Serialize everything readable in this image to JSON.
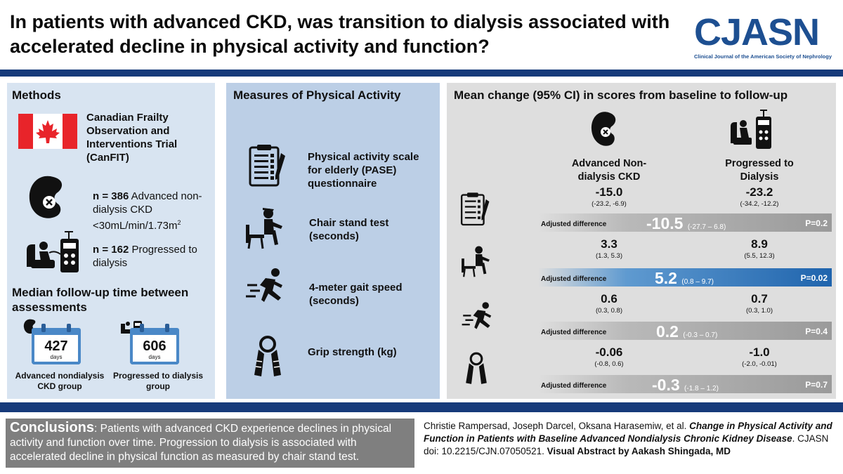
{
  "header": {
    "title": "In patients with advanced CKD, was transition to dialysis associated with accelerated decline in physical activity and function?",
    "logo": "CJASN",
    "logo_subtitle": "Clinical Journal of the American Society of Nephrology"
  },
  "methods": {
    "heading": "Methods",
    "trial": "Canadian Frailty Observation and Interventions Trial (CanFIT)",
    "n1_bold": "n = 386",
    "n1_text": " Advanced non-dialysis CKD <30mL/min/1.73m",
    "n1_sup": "2",
    "n2_bold": "n = 162",
    "n2_text": " Progressed to dialysis",
    "followup_heading": "Median follow-up time between assessments",
    "cal1_value": "427",
    "cal1_unit": "days",
    "cal1_label": "Advanced nondialysis CKD group",
    "cal2_value": "606",
    "cal2_unit": "days",
    "cal2_label": "Progressed to dialysis group"
  },
  "measures": {
    "heading": "Measures of Physical Activity",
    "items": [
      {
        "label": "Physical activity scale for elderly (PASE) questionnaire",
        "icon": "clipboard-icon"
      },
      {
        "label": "Chair stand test (seconds)",
        "icon": "chair-stand-icon"
      },
      {
        "label": "4-meter gait speed (seconds)",
        "icon": "running-icon"
      },
      {
        "label": "Grip strength (kg)",
        "icon": "grip-icon"
      }
    ]
  },
  "results": {
    "heading": "Mean change (95% CI) in scores from baseline to follow-up",
    "col1": "Advanced Non-dialysis CKD",
    "col2": "Progressed to Dialysis",
    "adj_label": "Adjusted difference",
    "rows": [
      {
        "v1": "-15.0",
        "ci1": "(-23.2, -6.9)",
        "v2": "-23.2",
        "ci2": "(-34.2, -12.2)",
        "adj": "-10.5",
        "adj_ci": "(-27.7 – 6.8)",
        "p": "P=0.2"
      },
      {
        "v1": "3.3",
        "ci1": "(1.3, 5.3)",
        "v2": "8.9",
        "ci2": "(5.5, 12.3)",
        "adj": "5.2",
        "adj_ci": "(0.8 – 9.7)",
        "p": "P=0.02"
      },
      {
        "v1": "0.6",
        "ci1": "(0.3, 0.8)",
        "v2": "0.7",
        "ci2": "(0.3, 1.0)",
        "adj": "0.2",
        "adj_ci": "(-0.3 – 0.7)",
        "p": "P=0.4"
      },
      {
        "v1": "-0.06",
        "ci1": "(-0.8, 0.6)",
        "v2": "-1.0",
        "ci2": "(-2.0, -0.01)",
        "adj": "-0.3",
        "adj_ci": "(-1.8 – 1.2)",
        "p": "P=0.7"
      }
    ]
  },
  "conclusions": {
    "label": "Conclusions",
    "text": ": Patients with advanced CKD experience declines in physical activity and function over time. Progression to dialysis is associated with accelerated decline in physical function as measured by chair stand test."
  },
  "citation": {
    "authors": "Christie Rampersad, Joseph Darcel, Oksana Harasemiw, et al. ",
    "title": "Change in Physical Activity and Function in Patients with Baseline Advanced Nondialysis Chronic Kidney Disease",
    "journal": ". CJASN doi: 10.2215/CJN.07050521. ",
    "credit": "Visual Abstract by Aakash Shingada, MD"
  },
  "colors": {
    "navy": "#163a7a",
    "brand": "#1d4f91",
    "highlight": "#2f7cc0"
  }
}
